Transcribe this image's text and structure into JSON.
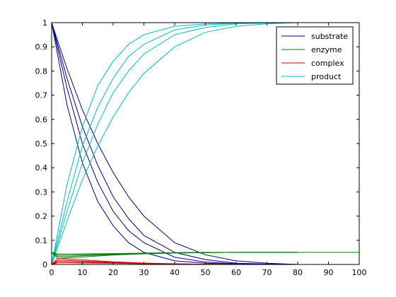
{
  "chart_data": {
    "type": "line",
    "title": "",
    "xlabel": "",
    "ylabel": "",
    "xlim": [
      0,
      100
    ],
    "ylim": [
      0,
      1
    ],
    "x_ticks": [
      0,
      10,
      20,
      30,
      40,
      50,
      60,
      70,
      80,
      90,
      100
    ],
    "y_ticks": [
      0,
      0.1,
      0.2,
      0.3,
      0.4,
      0.5,
      0.6,
      0.7,
      0.8,
      0.9,
      1
    ],
    "grid": false,
    "legend_placement": "top-right",
    "legend": [
      {
        "label": "substrate",
        "color": "#00008B"
      },
      {
        "label": "enzyme",
        "color": "#007F00"
      },
      {
        "label": "complex",
        "color": "#CC0000"
      },
      {
        "label": "product",
        "color": "#00BFBF"
      }
    ],
    "series": [
      {
        "name": "substrate",
        "color": "#00008B",
        "x": [
          0,
          5,
          10,
          15,
          20,
          25,
          30,
          40,
          50,
          60,
          70,
          80
        ],
        "y": [
          1.0,
          0.81,
          0.64,
          0.5,
          0.38,
          0.28,
          0.2,
          0.09,
          0.04,
          0.015,
          0.005,
          0.0
        ]
      },
      {
        "name": "substrate",
        "color": "#00008B",
        "x": [
          0,
          5,
          10,
          15,
          20,
          25,
          30,
          40,
          50,
          60,
          70,
          80
        ],
        "y": [
          1.0,
          0.77,
          0.57,
          0.41,
          0.28,
          0.19,
          0.12,
          0.05,
          0.02,
          0.005,
          0.002,
          0.0
        ]
      },
      {
        "name": "substrate",
        "color": "#00008B",
        "x": [
          0,
          5,
          10,
          15,
          20,
          25,
          30,
          40,
          50,
          60,
          70,
          80
        ],
        "y": [
          1.0,
          0.73,
          0.5,
          0.34,
          0.22,
          0.14,
          0.09,
          0.03,
          0.01,
          0.003,
          0.001,
          0.0
        ]
      },
      {
        "name": "substrate",
        "color": "#00008B",
        "x": [
          0,
          5,
          10,
          15,
          20,
          25,
          30,
          40,
          50,
          60,
          70,
          80
        ],
        "y": [
          1.0,
          0.66,
          0.42,
          0.26,
          0.16,
          0.09,
          0.05,
          0.015,
          0.005,
          0.001,
          0.0,
          0.0
        ]
      },
      {
        "name": "product",
        "color": "#00BFBF",
        "x": [
          0,
          5,
          10,
          15,
          20,
          25,
          30,
          40,
          50,
          60,
          70,
          80
        ],
        "y": [
          0.0,
          0.18,
          0.35,
          0.49,
          0.61,
          0.71,
          0.79,
          0.9,
          0.96,
          0.985,
          0.995,
          1.0
        ]
      },
      {
        "name": "product",
        "color": "#00BFBF",
        "x": [
          0,
          5,
          10,
          15,
          20,
          25,
          30,
          40,
          50,
          60,
          70,
          80
        ],
        "y": [
          0.0,
          0.22,
          0.42,
          0.58,
          0.71,
          0.8,
          0.87,
          0.95,
          0.98,
          0.995,
          0.998,
          1.0
        ]
      },
      {
        "name": "product",
        "color": "#00BFBF",
        "x": [
          0,
          5,
          10,
          15,
          20,
          25,
          30,
          40,
          50,
          60,
          70,
          80
        ],
        "y": [
          0.0,
          0.26,
          0.49,
          0.65,
          0.77,
          0.86,
          0.91,
          0.97,
          0.99,
          0.997,
          0.999,
          1.0
        ]
      },
      {
        "name": "product",
        "color": "#00BFBF",
        "x": [
          0,
          5,
          10,
          15,
          20,
          25,
          30,
          40,
          50,
          60,
          70,
          80
        ],
        "y": [
          0.0,
          0.33,
          0.57,
          0.74,
          0.84,
          0.91,
          0.95,
          0.985,
          0.995,
          0.999,
          1.0,
          1.0
        ]
      },
      {
        "name": "enzyme",
        "color": "#007F00",
        "x": [
          0,
          2,
          5,
          10,
          20,
          30,
          40,
          50,
          60,
          80,
          100
        ],
        "y": [
          0.05,
          0.043,
          0.043,
          0.044,
          0.045,
          0.047,
          0.049,
          0.05,
          0.05,
          0.05,
          0.05
        ]
      },
      {
        "name": "enzyme",
        "color": "#007F00",
        "x": [
          0,
          2,
          5,
          10,
          20,
          30,
          40,
          50,
          60,
          80
        ],
        "y": [
          0.05,
          0.038,
          0.038,
          0.04,
          0.043,
          0.046,
          0.048,
          0.049,
          0.05,
          0.05
        ]
      },
      {
        "name": "enzyme",
        "color": "#007F00",
        "x": [
          0,
          2,
          5,
          10,
          20,
          30,
          40,
          50,
          60,
          80
        ],
        "y": [
          0.05,
          0.032,
          0.033,
          0.036,
          0.041,
          0.045,
          0.048,
          0.049,
          0.05,
          0.05
        ]
      },
      {
        "name": "enzyme",
        "color": "#007F00",
        "x": [
          0,
          2,
          5,
          10,
          20,
          30,
          40,
          50,
          60,
          80
        ],
        "y": [
          0.05,
          0.025,
          0.027,
          0.031,
          0.039,
          0.044,
          0.047,
          0.049,
          0.05,
          0.05
        ]
      },
      {
        "name": "complex",
        "color": "#CC0000",
        "x": [
          0,
          2,
          5,
          10,
          20,
          30,
          40,
          50,
          60,
          80,
          100
        ],
        "y": [
          0.0,
          0.007,
          0.007,
          0.006,
          0.005,
          0.003,
          0.001,
          0.0005,
          0.0,
          0.0,
          0.0
        ]
      },
      {
        "name": "complex",
        "color": "#CC0000",
        "x": [
          0,
          2,
          5,
          10,
          20,
          30,
          40,
          50,
          60,
          80
        ],
        "y": [
          0.0,
          0.012,
          0.012,
          0.01,
          0.007,
          0.004,
          0.002,
          0.001,
          0.0,
          0.0
        ]
      },
      {
        "name": "complex",
        "color": "#CC0000",
        "x": [
          0,
          2,
          5,
          10,
          20,
          30,
          40,
          50,
          60,
          80
        ],
        "y": [
          0.0,
          0.018,
          0.017,
          0.014,
          0.009,
          0.005,
          0.002,
          0.001,
          0.0,
          0.0
        ]
      },
      {
        "name": "complex",
        "color": "#CC0000",
        "x": [
          0,
          2,
          5,
          10,
          20,
          30,
          40,
          50,
          60,
          80
        ],
        "y": [
          0.0,
          0.025,
          0.023,
          0.019,
          0.011,
          0.006,
          0.003,
          0.001,
          0.0,
          0.0
        ]
      }
    ]
  }
}
